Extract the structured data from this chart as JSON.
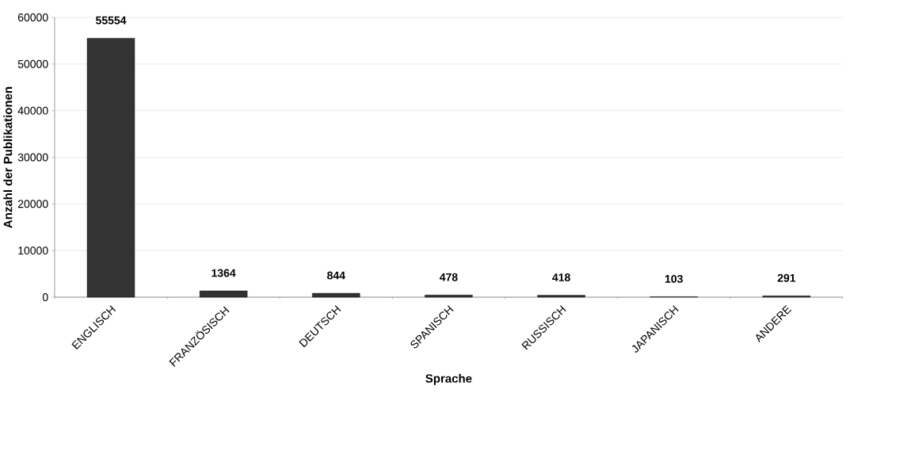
{
  "chart_data": {
    "type": "bar",
    "xlabel": "Sprache",
    "ylabel": "Anzahl der Publikationen",
    "categories": [
      "ENGLISCH",
      "FRANZÖSISCH",
      "DEUTSCH",
      "SPANISCH",
      "RUSSISCH",
      "JAPANISCH",
      "ANDERE"
    ],
    "values": [
      55554,
      1364,
      844,
      478,
      418,
      103,
      291
    ],
    "color": "#333333",
    "ylim": [
      0,
      60000
    ],
    "yticks": [
      0,
      10000,
      20000,
      30000,
      40000,
      50000,
      60000
    ],
    "grid": "y",
    "data_labels": true
  }
}
